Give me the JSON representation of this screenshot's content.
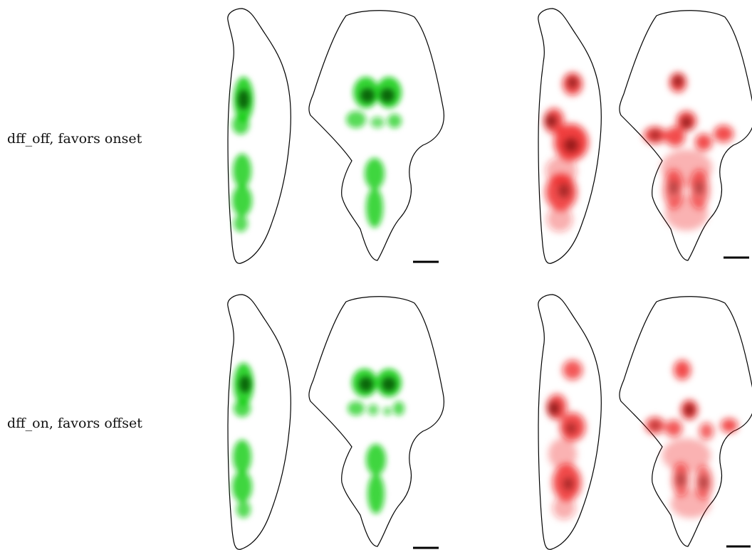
{
  "rows": [
    {
      "label": "dff_off, favors onset"
    },
    {
      "label": "dff_on, favors offset"
    }
  ],
  "colors": {
    "green_map": "#11cc11",
    "green_core": "#064d06",
    "red_map": "#ee1111",
    "red_core": "#5a0000",
    "outline": "#000000"
  }
}
